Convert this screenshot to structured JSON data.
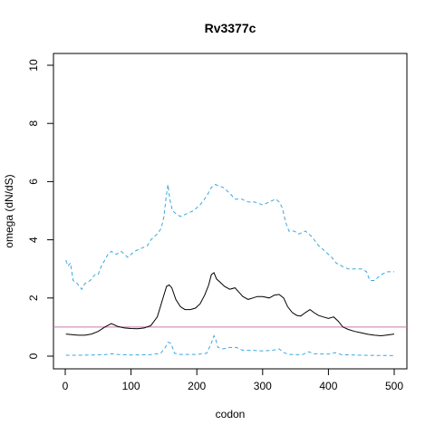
{
  "chart_data": {
    "type": "line",
    "title": "Rv3377c",
    "xlabel": "codon",
    "ylabel": "omega (dN/dS)",
    "xlim": [
      0,
      500
    ],
    "ylim": [
      0,
      10
    ],
    "x_ticks": [
      0,
      100,
      200,
      300,
      400,
      500
    ],
    "y_ticks": [
      0,
      2,
      4,
      6,
      8,
      10
    ],
    "reference_line": {
      "y": 1,
      "color": "#cc79a7"
    },
    "grid": false,
    "series": [
      {
        "role": "upper-bound",
        "color": "#3aa8e0",
        "style": "dashed",
        "points": [
          [
            1,
            3.3
          ],
          [
            4,
            3.1
          ],
          [
            8,
            3.2
          ],
          [
            12,
            2.6
          ],
          [
            18,
            2.5
          ],
          [
            25,
            2.3
          ],
          [
            30,
            2.5
          ],
          [
            38,
            2.6
          ],
          [
            45,
            2.8
          ],
          [
            50,
            2.8
          ],
          [
            55,
            3.1
          ],
          [
            60,
            3.3
          ],
          [
            65,
            3.5
          ],
          [
            70,
            3.6
          ],
          [
            78,
            3.5
          ],
          [
            85,
            3.6
          ],
          [
            95,
            3.4
          ],
          [
            105,
            3.6
          ],
          [
            115,
            3.7
          ],
          [
            125,
            3.8
          ],
          [
            130,
            4.0
          ],
          [
            140,
            4.2
          ],
          [
            146,
            4.4
          ],
          [
            150,
            4.8
          ],
          [
            153,
            5.4
          ],
          [
            156,
            5.9
          ],
          [
            159,
            5.4
          ],
          [
            163,
            5.0
          ],
          [
            168,
            4.9
          ],
          [
            175,
            4.8
          ],
          [
            185,
            4.9
          ],
          [
            195,
            5.0
          ],
          [
            205,
            5.2
          ],
          [
            215,
            5.5
          ],
          [
            222,
            5.8
          ],
          [
            228,
            5.9
          ],
          [
            240,
            5.8
          ],
          [
            250,
            5.6
          ],
          [
            258,
            5.4
          ],
          [
            268,
            5.4
          ],
          [
            278,
            5.3
          ],
          [
            288,
            5.3
          ],
          [
            300,
            5.2
          ],
          [
            310,
            5.3
          ],
          [
            320,
            5.4
          ],
          [
            325,
            5.3
          ],
          [
            330,
            5.1
          ],
          [
            335,
            4.6
          ],
          [
            340,
            4.3
          ],
          [
            348,
            4.3
          ],
          [
            355,
            4.2
          ],
          [
            365,
            4.3
          ],
          [
            375,
            4.1
          ],
          [
            385,
            3.8
          ],
          [
            395,
            3.6
          ],
          [
            405,
            3.4
          ],
          [
            412,
            3.2
          ],
          [
            420,
            3.1
          ],
          [
            430,
            3.0
          ],
          [
            440,
            3.0
          ],
          [
            450,
            3.0
          ],
          [
            458,
            2.9
          ],
          [
            463,
            2.6
          ],
          [
            470,
            2.6
          ],
          [
            480,
            2.8
          ],
          [
            490,
            2.9
          ],
          [
            500,
            2.9
          ]
        ]
      },
      {
        "role": "estimate",
        "color": "#000000",
        "style": "solid",
        "points": [
          [
            1,
            0.76
          ],
          [
            10,
            0.74
          ],
          [
            20,
            0.72
          ],
          [
            30,
            0.72
          ],
          [
            40,
            0.76
          ],
          [
            50,
            0.85
          ],
          [
            60,
            1.0
          ],
          [
            70,
            1.12
          ],
          [
            80,
            1.02
          ],
          [
            90,
            0.97
          ],
          [
            100,
            0.95
          ],
          [
            110,
            0.94
          ],
          [
            120,
            0.97
          ],
          [
            130,
            1.05
          ],
          [
            140,
            1.35
          ],
          [
            148,
            1.95
          ],
          [
            154,
            2.4
          ],
          [
            158,
            2.45
          ],
          [
            162,
            2.35
          ],
          [
            168,
            1.95
          ],
          [
            175,
            1.7
          ],
          [
            182,
            1.6
          ],
          [
            190,
            1.6
          ],
          [
            198,
            1.65
          ],
          [
            205,
            1.8
          ],
          [
            212,
            2.1
          ],
          [
            218,
            2.45
          ],
          [
            222,
            2.8
          ],
          [
            226,
            2.87
          ],
          [
            230,
            2.65
          ],
          [
            235,
            2.55
          ],
          [
            242,
            2.4
          ],
          [
            250,
            2.3
          ],
          [
            258,
            2.35
          ],
          [
            262,
            2.25
          ],
          [
            270,
            2.05
          ],
          [
            278,
            1.95
          ],
          [
            285,
            2.0
          ],
          [
            292,
            2.05
          ],
          [
            300,
            2.05
          ],
          [
            310,
            2.0
          ],
          [
            318,
            2.1
          ],
          [
            325,
            2.12
          ],
          [
            332,
            2.0
          ],
          [
            338,
            1.7
          ],
          [
            345,
            1.5
          ],
          [
            352,
            1.4
          ],
          [
            358,
            1.38
          ],
          [
            365,
            1.5
          ],
          [
            372,
            1.6
          ],
          [
            378,
            1.5
          ],
          [
            385,
            1.4
          ],
          [
            392,
            1.35
          ],
          [
            400,
            1.3
          ],
          [
            408,
            1.35
          ],
          [
            415,
            1.2
          ],
          [
            422,
            1.0
          ],
          [
            430,
            0.92
          ],
          [
            440,
            0.85
          ],
          [
            450,
            0.8
          ],
          [
            460,
            0.75
          ],
          [
            470,
            0.72
          ],
          [
            480,
            0.7
          ],
          [
            490,
            0.73
          ],
          [
            500,
            0.76
          ]
        ]
      },
      {
        "role": "lower-bound",
        "color": "#3aa8e0",
        "style": "dashed",
        "points": [
          [
            1,
            0.03
          ],
          [
            20,
            0.03
          ],
          [
            40,
            0.04
          ],
          [
            60,
            0.05
          ],
          [
            70,
            0.08
          ],
          [
            80,
            0.06
          ],
          [
            100,
            0.04
          ],
          [
            130,
            0.05
          ],
          [
            145,
            0.1
          ],
          [
            152,
            0.3
          ],
          [
            156,
            0.48
          ],
          [
            160,
            0.45
          ],
          [
            163,
            0.3
          ],
          [
            166,
            0.1
          ],
          [
            175,
            0.06
          ],
          [
            200,
            0.06
          ],
          [
            215,
            0.1
          ],
          [
            222,
            0.45
          ],
          [
            226,
            0.7
          ],
          [
            229,
            0.55
          ],
          [
            232,
            0.3
          ],
          [
            240,
            0.25
          ],
          [
            250,
            0.3
          ],
          [
            260,
            0.3
          ],
          [
            270,
            0.2
          ],
          [
            285,
            0.2
          ],
          [
            300,
            0.18
          ],
          [
            315,
            0.2
          ],
          [
            325,
            0.25
          ],
          [
            332,
            0.12
          ],
          [
            340,
            0.06
          ],
          [
            360,
            0.05
          ],
          [
            370,
            0.15
          ],
          [
            378,
            0.08
          ],
          [
            400,
            0.07
          ],
          [
            410,
            0.12
          ],
          [
            420,
            0.05
          ],
          [
            450,
            0.03
          ],
          [
            500,
            0.02
          ]
        ]
      }
    ]
  }
}
